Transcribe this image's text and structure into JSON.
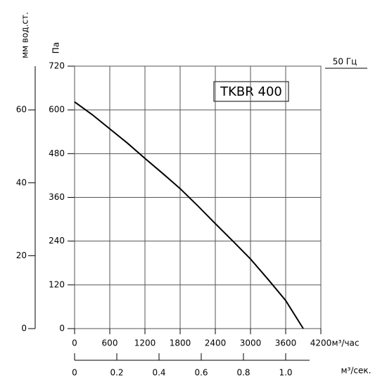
{
  "chart_data": {
    "type": "line",
    "title": "TKBR 400",
    "frequency_label": "50 Гц",
    "x_label": "м³/час",
    "x2_label": "м³/сек.",
    "y_label": "Па",
    "y2_label": "мм вод.ст.",
    "x": [
      0,
      300,
      600,
      900,
      1200,
      1500,
      1800,
      2100,
      2400,
      2700,
      3000,
      3300,
      3600,
      3900
    ],
    "series": [
      {
        "color": "#000000",
        "values": [
          622,
          587,
          548,
          509,
          467,
          426,
          384,
          337,
          288,
          240,
          191,
          135,
          77,
          0
        ]
      }
    ],
    "xlim": [
      0,
      4200
    ],
    "xticks": [
      0,
      600,
      1200,
      1800,
      2400,
      3000,
      3600,
      4200
    ],
    "x2lim": [
      0,
      1.1667
    ],
    "x2ticks": [
      0,
      0.2,
      0.4,
      0.6,
      0.8,
      {
        "value": 1,
        "label": "1.0"
      }
    ],
    "ylim": [
      0,
      720
    ],
    "yticks": [
      0,
      120,
      240,
      360,
      480,
      600,
      720
    ],
    "y2lim": [
      0,
      72
    ],
    "y2ticks": [
      0,
      20,
      40,
      60
    ],
    "grid": true
  }
}
